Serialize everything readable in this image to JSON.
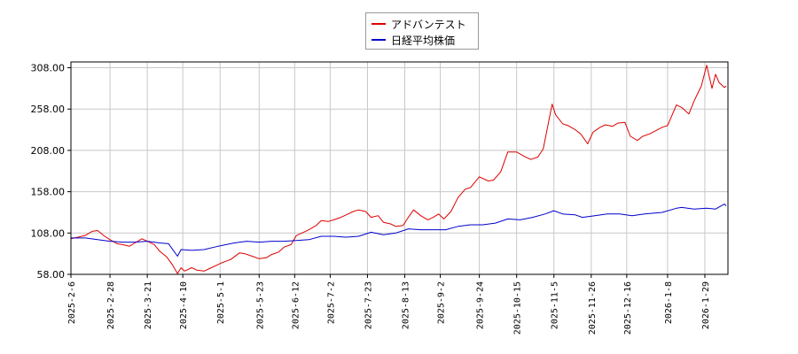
{
  "chart_data": {
    "type": "line",
    "title": "",
    "xlabel": "",
    "ylabel": "",
    "ylim": [
      58,
      315
    ],
    "yticks": [
      58,
      108,
      158,
      208,
      258,
      308
    ],
    "ytick_labels": [
      "58.00",
      "108.00",
      "158.00",
      "208.00",
      "258.00",
      "308.00"
    ],
    "xticks": [
      "2025-2-6",
      "2025-2-28",
      "2025-3-21",
      "2025-4-10",
      "2025-5-1",
      "2025-5-23",
      "2025-6-12",
      "2025-7-2",
      "2025-7-23",
      "2025-8-13",
      "2025-9-2",
      "2025-9-24",
      "2025-10-15",
      "2025-11-5",
      "2025-11-26",
      "2025-12-16",
      "2026-1-8",
      "2026-1-29"
    ],
    "xlim": [
      "2025-02-06",
      "2026-02-11"
    ],
    "grid": true,
    "legend_position": "top-center",
    "series": [
      {
        "name": "アドバンテスト",
        "color": "#dd0000",
        "points": [
          [
            "2025-02-06",
            101
          ],
          [
            "2025-02-10",
            103
          ],
          [
            "2025-02-14",
            105
          ],
          [
            "2025-02-18",
            110
          ],
          [
            "2025-02-21",
            111
          ],
          [
            "2025-02-25",
            104
          ],
          [
            "2025-02-28",
            100
          ],
          [
            "2025-03-04",
            95
          ],
          [
            "2025-03-07",
            94
          ],
          [
            "2025-03-11",
            92
          ],
          [
            "2025-03-14",
            96
          ],
          [
            "2025-03-18",
            101
          ],
          [
            "2025-03-21",
            98
          ],
          [
            "2025-03-25",
            94
          ],
          [
            "2025-03-28",
            86
          ],
          [
            "2025-04-01",
            79
          ],
          [
            "2025-04-04",
            70
          ],
          [
            "2025-04-07",
            59
          ],
          [
            "2025-04-09",
            66
          ],
          [
            "2025-04-11",
            62
          ],
          [
            "2025-04-15",
            66
          ],
          [
            "2025-04-18",
            63
          ],
          [
            "2025-04-22",
            62
          ],
          [
            "2025-04-25",
            65
          ],
          [
            "2025-04-30",
            70
          ],
          [
            "2025-05-02",
            72
          ],
          [
            "2025-05-07",
            76
          ],
          [
            "2025-05-12",
            84
          ],
          [
            "2025-05-15",
            83
          ],
          [
            "2025-05-19",
            80
          ],
          [
            "2025-05-23",
            77
          ],
          [
            "2025-05-27",
            78
          ],
          [
            "2025-05-30",
            82
          ],
          [
            "2025-06-03",
            85
          ],
          [
            "2025-06-06",
            91
          ],
          [
            "2025-06-10",
            94
          ],
          [
            "2025-06-13",
            105
          ],
          [
            "2025-06-17",
            109
          ],
          [
            "2025-06-20",
            112
          ],
          [
            "2025-06-24",
            117
          ],
          [
            "2025-06-27",
            123
          ],
          [
            "2025-07-01",
            122
          ],
          [
            "2025-07-04",
            124
          ],
          [
            "2025-07-08",
            127
          ],
          [
            "2025-07-11",
            130
          ],
          [
            "2025-07-15",
            134
          ],
          [
            "2025-07-18",
            136
          ],
          [
            "2025-07-22",
            134
          ],
          [
            "2025-07-25",
            127
          ],
          [
            "2025-07-29",
            129
          ],
          [
            "2025-08-01",
            121
          ],
          [
            "2025-08-05",
            119
          ],
          [
            "2025-08-08",
            116
          ],
          [
            "2025-08-12",
            117
          ],
          [
            "2025-08-15",
            127
          ],
          [
            "2025-08-18",
            136
          ],
          [
            "2025-08-22",
            129
          ],
          [
            "2025-08-26",
            124
          ],
          [
            "2025-08-29",
            127
          ],
          [
            "2025-09-01",
            131
          ],
          [
            "2025-09-04",
            125
          ],
          [
            "2025-09-08",
            134
          ],
          [
            "2025-09-12",
            151
          ],
          [
            "2025-09-16",
            161
          ],
          [
            "2025-09-19",
            163
          ],
          [
            "2025-09-24",
            176
          ],
          [
            "2025-09-29",
            171
          ],
          [
            "2025-10-02",
            172
          ],
          [
            "2025-10-06",
            182
          ],
          [
            "2025-10-10",
            206
          ],
          [
            "2025-10-15",
            206
          ],
          [
            "2025-10-20",
            200
          ],
          [
            "2025-10-23",
            197
          ],
          [
            "2025-10-27",
            200
          ],
          [
            "2025-10-30",
            210
          ],
          [
            "2025-11-04",
            264
          ],
          [
            "2025-11-06",
            251
          ],
          [
            "2025-11-10",
            240
          ],
          [
            "2025-11-13",
            238
          ],
          [
            "2025-11-17",
            233
          ],
          [
            "2025-11-20",
            228
          ],
          [
            "2025-11-24",
            216
          ],
          [
            "2025-11-27",
            230
          ],
          [
            "2025-12-01",
            236
          ],
          [
            "2025-12-04",
            239
          ],
          [
            "2025-12-08",
            237
          ],
          [
            "2025-12-11",
            241
          ],
          [
            "2025-12-15",
            242
          ],
          [
            "2025-12-18",
            225
          ],
          [
            "2025-12-22",
            220
          ],
          [
            "2025-12-25",
            225
          ],
          [
            "2025-12-29",
            228
          ],
          [
            "2026-01-05",
            236
          ],
          [
            "2026-01-08",
            238
          ],
          [
            "2026-01-13",
            263
          ],
          [
            "2026-01-16",
            260
          ],
          [
            "2026-01-20",
            252
          ],
          [
            "2026-01-23",
            268
          ],
          [
            "2026-01-27",
            286
          ],
          [
            "2026-01-30",
            311
          ],
          [
            "2026-02-02",
            283
          ],
          [
            "2026-02-04",
            300
          ],
          [
            "2026-02-06",
            290
          ],
          [
            "2026-02-09",
            284
          ],
          [
            "2026-02-10",
            286
          ]
        ]
      },
      {
        "name": "日経平均株価",
        "color": "#0000cc",
        "points": [
          [
            "2025-02-06",
            102
          ],
          [
            "2025-02-14",
            102
          ],
          [
            "2025-02-21",
            100
          ],
          [
            "2025-02-28",
            98
          ],
          [
            "2025-03-07",
            97
          ],
          [
            "2025-03-14",
            97
          ],
          [
            "2025-03-21",
            98
          ],
          [
            "2025-03-28",
            96
          ],
          [
            "2025-04-02",
            95
          ],
          [
            "2025-04-07",
            80
          ],
          [
            "2025-04-09",
            88
          ],
          [
            "2025-04-15",
            87
          ],
          [
            "2025-04-22",
            88
          ],
          [
            "2025-04-30",
            92
          ],
          [
            "2025-05-09",
            96
          ],
          [
            "2025-05-16",
            98
          ],
          [
            "2025-05-23",
            97
          ],
          [
            "2025-05-30",
            98
          ],
          [
            "2025-06-06",
            98
          ],
          [
            "2025-06-13",
            99
          ],
          [
            "2025-06-20",
            100
          ],
          [
            "2025-06-27",
            104
          ],
          [
            "2025-07-04",
            104
          ],
          [
            "2025-07-11",
            103
          ],
          [
            "2025-07-18",
            104
          ],
          [
            "2025-07-25",
            109
          ],
          [
            "2025-08-01",
            106
          ],
          [
            "2025-08-08",
            108
          ],
          [
            "2025-08-15",
            113
          ],
          [
            "2025-08-22",
            112
          ],
          [
            "2025-08-29",
            112
          ],
          [
            "2025-09-05",
            112
          ],
          [
            "2025-09-12",
            116
          ],
          [
            "2025-09-19",
            118
          ],
          [
            "2025-09-26",
            118
          ],
          [
            "2025-10-03",
            120
          ],
          [
            "2025-10-10",
            125
          ],
          [
            "2025-10-17",
            124
          ],
          [
            "2025-10-24",
            127
          ],
          [
            "2025-10-31",
            131
          ],
          [
            "2025-11-05",
            135
          ],
          [
            "2025-11-10",
            131
          ],
          [
            "2025-11-17",
            130
          ],
          [
            "2025-11-21",
            127
          ],
          [
            "2025-11-28",
            129
          ],
          [
            "2025-12-05",
            131
          ],
          [
            "2025-12-12",
            131
          ],
          [
            "2025-12-19",
            129
          ],
          [
            "2025-12-26",
            131
          ],
          [
            "2026-01-05",
            133
          ],
          [
            "2026-01-13",
            138
          ],
          [
            "2026-01-16",
            139
          ],
          [
            "2026-01-23",
            137
          ],
          [
            "2026-01-30",
            138
          ],
          [
            "2026-02-04",
            137
          ],
          [
            "2026-02-09",
            143
          ],
          [
            "2026-02-10",
            141
          ]
        ]
      }
    ]
  }
}
